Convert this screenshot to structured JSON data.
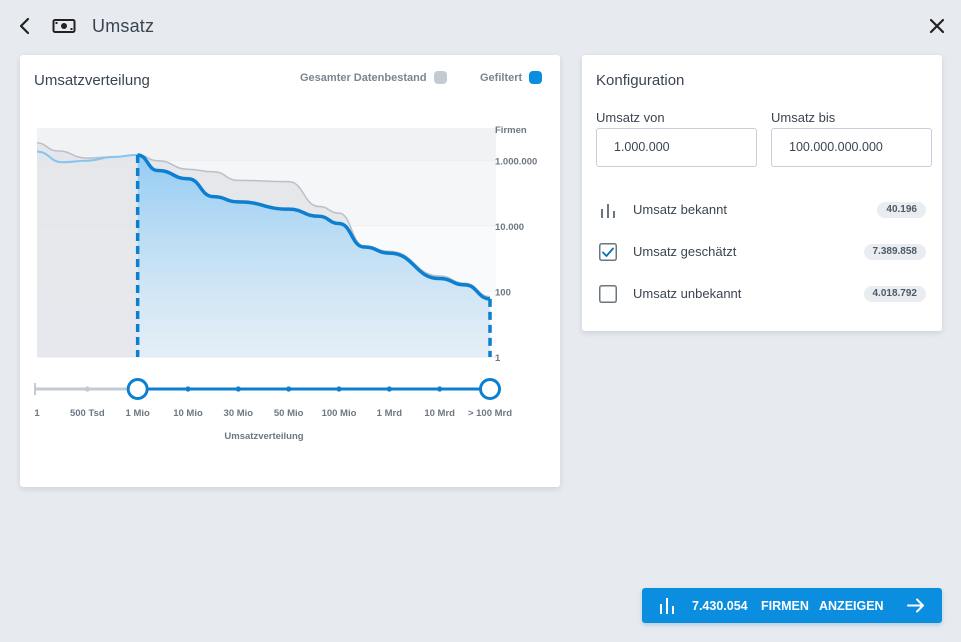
{
  "header": {
    "title": "Umsatz",
    "back_icon": "chevron-left-icon",
    "money_icon": "money-bill-icon",
    "close_icon": "close-icon"
  },
  "chart_card": {
    "title": "Umsatzverteilung",
    "legend": [
      {
        "label": "Gesamter Datenbestand",
        "color": "#c4cad1"
      },
      {
        "label": "Gefiltert",
        "color": "#0c8ee0"
      }
    ]
  },
  "chart_data": {
    "type": "area",
    "xlabel": "Umsatzverteilung",
    "ylabel": "Firmen",
    "y_scale": "log",
    "y_ticks": [
      "1.000.000",
      "10.000",
      "100",
      "1"
    ],
    "x_ticks": [
      "1",
      "500 Tsd",
      "1 Mio",
      "10 Mio",
      "30 Mio",
      "50 Mio",
      "100 Mio",
      "1 Mrd",
      "10 Mrd",
      "> 100 Mrd"
    ],
    "range_selected": [
      "1 Mio",
      "> 100 Mrd"
    ],
    "series": [
      {
        "name": "Gesamter Datenbestand"
      },
      {
        "name": "Gefiltert"
      }
    ],
    "total_shape": [
      [
        0,
        3500000
      ],
      [
        0.4,
        2000000
      ],
      [
        1,
        1200000
      ],
      [
        1.5,
        1300000
      ],
      [
        2,
        1500000
      ],
      [
        2.4,
        1000000
      ],
      [
        3,
        550000
      ],
      [
        3.5,
        460000
      ],
      [
        4,
        250000
      ],
      [
        5,
        230000
      ],
      [
        5.6,
        40000
      ],
      [
        6,
        25000
      ],
      [
        6.5,
        2500
      ],
      [
        7,
        1700
      ],
      [
        8,
        300
      ],
      [
        8.5,
        180
      ],
      [
        9,
        70
      ]
    ],
    "filtered_shape": [
      [
        2,
        1500000
      ],
      [
        2.4,
        500000
      ],
      [
        3,
        280000
      ],
      [
        3.5,
        80000
      ],
      [
        4,
        55000
      ],
      [
        5,
        33000
      ],
      [
        5.6,
        20000
      ],
      [
        6,
        12000
      ],
      [
        6.5,
        2300
      ],
      [
        7,
        1500
      ],
      [
        8,
        250
      ],
      [
        8.5,
        160
      ],
      [
        9,
        60
      ]
    ],
    "unfiltered_line": [
      [
        0,
        1900000
      ],
      [
        0.5,
        900000
      ],
      [
        1,
        1000000
      ],
      [
        1.5,
        1300000
      ],
      [
        2,
        1500000
      ]
    ]
  },
  "config": {
    "title": "Konfiguration",
    "from_label": "Umsatz von",
    "from_value": "1.000.000",
    "to_label": "Umsatz bis",
    "to_value": "100.000.000.000",
    "rows": [
      {
        "label": "Umsatz bekannt",
        "count": "40.196",
        "icon": "bar-chart-icon",
        "checked": null
      },
      {
        "label": "Umsatz geschätzt",
        "count": "7.389.858",
        "icon": "checkbox-checked-icon",
        "checked": true
      },
      {
        "label": "Umsatz unbekannt",
        "count": "4.018.792",
        "icon": "checkbox-unchecked-icon",
        "checked": false
      }
    ]
  },
  "cta": {
    "count": "7.430.054",
    "word1": "FIRMEN",
    "word2": "ANZEIGEN",
    "icon": "bar-chart-icon",
    "arrow_icon": "arrow-right-icon",
    "color": "#0c8ee0"
  }
}
